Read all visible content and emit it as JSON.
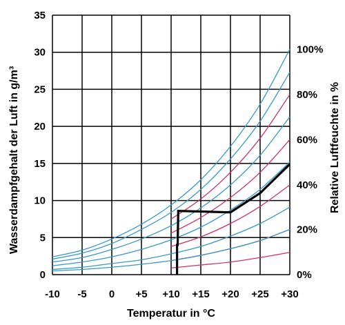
{
  "chart_data": {
    "type": "line",
    "xlabel": "Temperatur in °C",
    "ylabel": "Wasserdampfgehalt der Luft in g/m³",
    "y2label": "Relative Luftfeuchte in %",
    "xlim": [
      -10,
      30
    ],
    "ylim": [
      0,
      35
    ],
    "x_tick_labels": [
      "-10",
      "-5",
      "0",
      "+5",
      "+10",
      "+15",
      "+20",
      "+25",
      "+30"
    ],
    "x_ticks": [
      -10,
      -5,
      0,
      5,
      10,
      15,
      20,
      25,
      30
    ],
    "y_ticks": [
      0,
      5,
      10,
      15,
      20,
      25,
      30,
      35
    ],
    "y2_tick_labels": [
      {
        "label": "100%",
        "y": 30.4
      },
      {
        "label": "80%",
        "y": 24.3
      },
      {
        "label": "60%",
        "y": 18.2
      },
      {
        "label": "40%",
        "y": 12.1
      },
      {
        "label": "20%",
        "y": 6.1
      },
      {
        "label": "0%",
        "y": 0
      }
    ],
    "grid": true,
    "colors": {
      "blue": "#3399cc",
      "red": "#cc3366",
      "path": "#000000",
      "grid": "#000000"
    },
    "series": [
      {
        "color": "blue",
        "x": [
          -10,
          -5,
          0,
          5,
          10,
          15,
          20,
          25,
          30
        ],
        "values": [
          2.4,
          3.3,
          4.8,
          6.8,
          9.4,
          12.8,
          17.3,
          23.0,
          30.4
        ]
      },
      {
        "color": "blue",
        "x": [
          -10,
          -5,
          0,
          5,
          10,
          15,
          20,
          25,
          30
        ],
        "values": [
          2.1,
          2.9,
          4.2,
          6.1,
          8.4,
          11.5,
          15.6,
          20.7,
          27.3
        ]
      },
      {
        "color": "red",
        "x": [
          10,
          15,
          20,
          25,
          30
        ],
        "values": [
          7.5,
          10.2,
          13.8,
          18.4,
          24.3
        ]
      },
      {
        "color": "blue",
        "x": [
          -10,
          -5,
          0,
          5,
          10,
          15,
          20,
          25,
          30
        ],
        "values": [
          1.7,
          2.3,
          3.4,
          4.8,
          6.6,
          9.0,
          12.1,
          16.1,
          21.3
        ]
      },
      {
        "color": "red",
        "x": [
          10,
          15,
          20,
          25,
          30
        ],
        "values": [
          5.6,
          7.7,
          10.4,
          13.8,
          18.2
        ]
      },
      {
        "color": "blue",
        "x": [
          -10,
          -5,
          0,
          5,
          10,
          15,
          20,
          25,
          30
        ],
        "values": [
          1.2,
          1.7,
          2.4,
          3.4,
          4.7,
          6.4,
          8.7,
          11.5,
          15.2
        ]
      },
      {
        "color": "red",
        "x": [
          10,
          15,
          20,
          25,
          30
        ],
        "values": [
          3.8,
          5.1,
          6.9,
          9.2,
          12.1
        ]
      },
      {
        "color": "blue",
        "x": [
          -10,
          -5,
          0,
          5,
          10,
          15,
          20,
          25,
          30
        ],
        "values": [
          0.7,
          1.0,
          1.5,
          2.0,
          2.8,
          3.8,
          5.2,
          6.9,
          9.1
        ]
      },
      {
        "color": "red",
        "x": [
          10,
          15,
          20,
          25,
          30
        ],
        "values": [
          1.9,
          2.6,
          3.5,
          4.6,
          6.1
        ]
      },
      {
        "color": "blue",
        "x": [
          -10,
          -5,
          0,
          5,
          10,
          15,
          20,
          25,
          30
        ],
        "values": [
          0.5,
          0.7,
          1.0,
          1.4,
          1.9,
          2.6,
          3.5,
          4.6,
          6.1
        ]
      },
      {
        "color": "red",
        "x": [
          10,
          15,
          20,
          25,
          30
        ],
        "values": [
          0.9,
          1.3,
          1.7,
          2.3,
          3.0
        ]
      }
    ],
    "path": {
      "color": "path",
      "x": [
        11,
        11,
        11.1,
        11.2,
        20,
        25,
        30
      ],
      "values": [
        0,
        4.0,
        4.0,
        8.6,
        8.4,
        11.0,
        14.9
      ]
    }
  }
}
